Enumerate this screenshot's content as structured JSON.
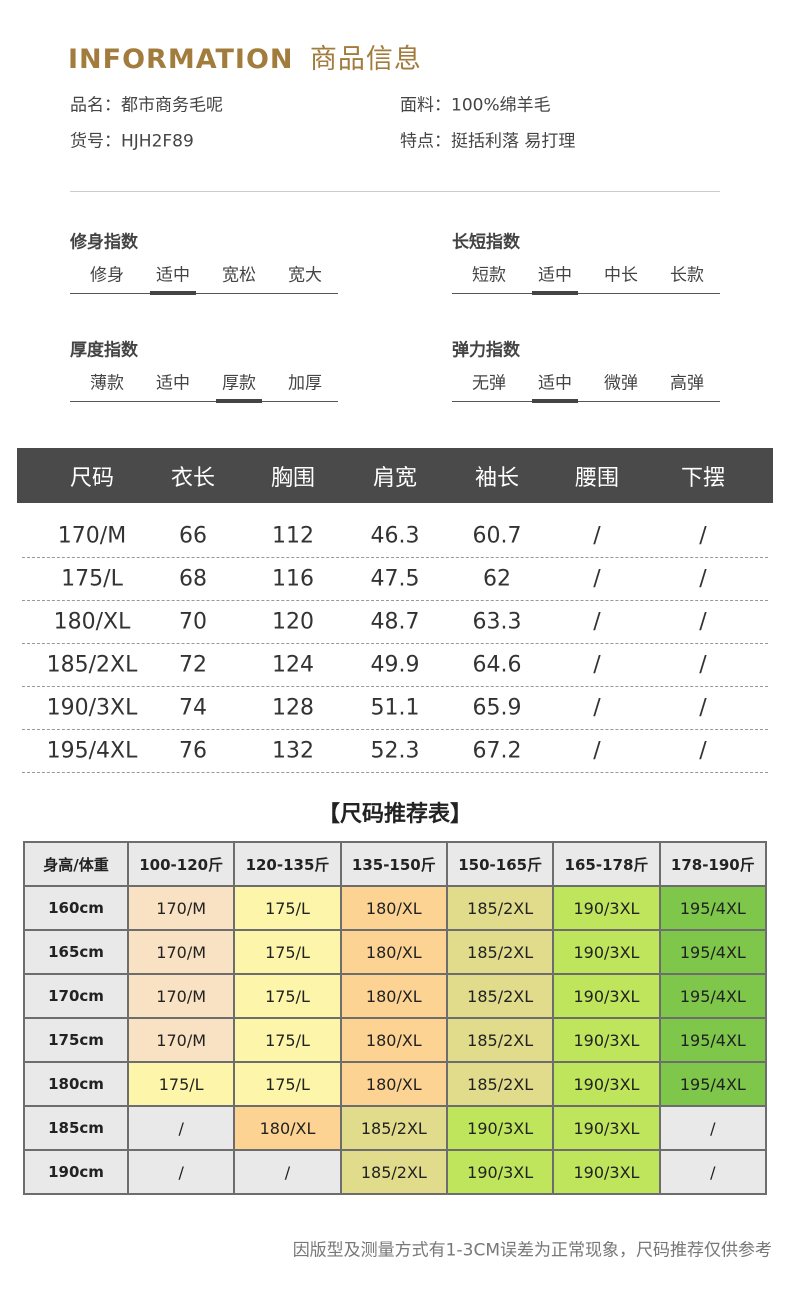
{
  "header": {
    "title_en": "INFORMATION",
    "title_cn": "商品信息"
  },
  "info": {
    "left": [
      "品名：都市商务毛呢",
      "货号：HJH2F89"
    ],
    "right": [
      "面料：100%绵羊毛",
      "特点：挺括利落 易打理"
    ]
  },
  "indices": [
    {
      "title": "修身指数",
      "options": [
        "修身",
        "适中",
        "宽松",
        "宽大"
      ],
      "selected": 1
    },
    {
      "title": "长短指数",
      "options": [
        "短款",
        "适中",
        "中长",
        "长款"
      ],
      "selected": 1
    },
    {
      "title": "厚度指数",
      "options": [
        "薄款",
        "适中",
        "厚款",
        "加厚"
      ],
      "selected": 2
    },
    {
      "title": "弹力指数",
      "options": [
        "无弹",
        "适中",
        "微弹",
        "高弹"
      ],
      "selected": 1
    }
  ],
  "size_table": {
    "headers": [
      "尺码",
      "衣长",
      "胸围",
      "肩宽",
      "袖长",
      "腰围",
      "下摆"
    ],
    "rows": [
      [
        "170/M",
        "66",
        "112",
        "46.3",
        "60.7",
        "/",
        "/"
      ],
      [
        "175/L",
        "68",
        "116",
        "47.5",
        "62",
        "/",
        "/"
      ],
      [
        "180/XL",
        "70",
        "120",
        "48.7",
        "63.3",
        "/",
        "/"
      ],
      [
        "185/2XL",
        "72",
        "124",
        "49.9",
        "64.6",
        "/",
        "/"
      ],
      [
        "190/3XL",
        "74",
        "128",
        "51.1",
        "65.9",
        "/",
        "/"
      ],
      [
        "195/4XL",
        "76",
        "132",
        "52.3",
        "67.2",
        "/",
        "/"
      ]
    ]
  },
  "rec_table": {
    "title": "【尺码推荐表】",
    "headers": [
      "身高/体重",
      "100-120斤",
      "120-135斤",
      "135-150斤",
      "150-165斤",
      "165-178斤",
      "178-190斤"
    ],
    "rows": [
      [
        "160cm",
        "170/M",
        "175/L",
        "180/XL",
        "185/2XL",
        "190/3XL",
        "195/4XL"
      ],
      [
        "165cm",
        "170/M",
        "175/L",
        "180/XL",
        "185/2XL",
        "190/3XL",
        "195/4XL"
      ],
      [
        "170cm",
        "170/M",
        "175/L",
        "180/XL",
        "185/2XL",
        "190/3XL",
        "195/4XL"
      ],
      [
        "175cm",
        "170/M",
        "175/L",
        "180/XL",
        "185/2XL",
        "190/3XL",
        "195/4XL"
      ],
      [
        "180cm",
        "175/L",
        "175/L",
        "180/XL",
        "185/2XL",
        "190/3XL",
        "195/4XL"
      ],
      [
        "185cm",
        "/",
        "180/XL",
        "185/2XL",
        "190/3XL",
        "190/3XL",
        "/"
      ],
      [
        "190cm",
        "/",
        "/",
        "185/2XL",
        "190/3XL",
        "190/3XL",
        "/"
      ]
    ],
    "size_colors": {
      "170/M": "#f9e2c3",
      "175/L": "#fdf6aa",
      "180/XL": "#fdd393",
      "185/2XL": "#e1db8c",
      "190/3XL": "#bee55c",
      "195/4XL": "#7ec74b",
      "/": "#e9e9e9"
    }
  },
  "footnote": "因版型及测量方式有1-3CM误差为正常现象，尺码推荐仅供参考"
}
